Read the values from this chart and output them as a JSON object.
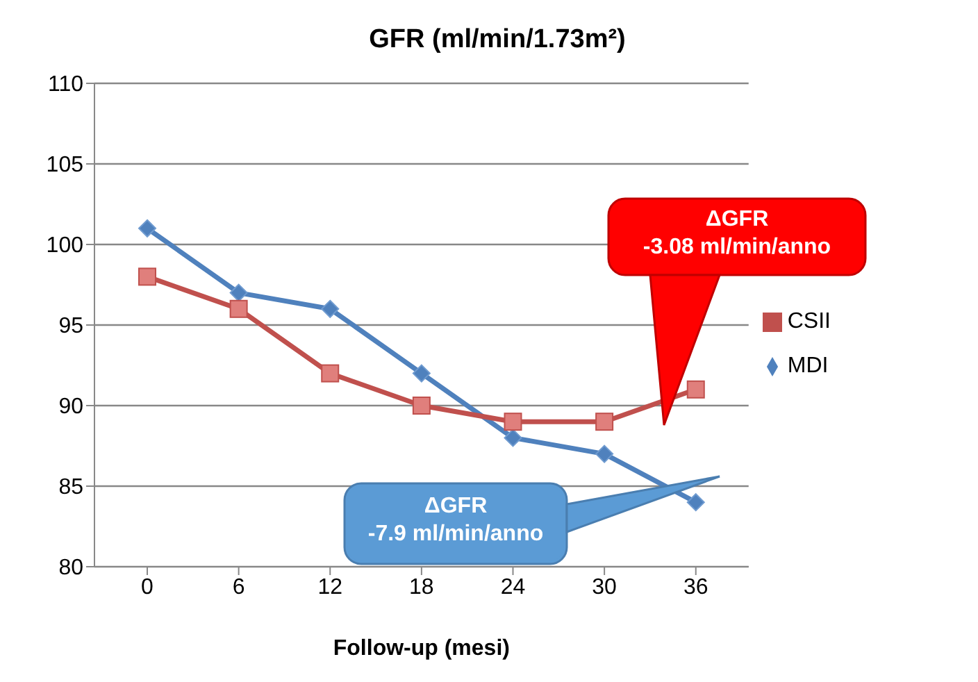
{
  "chart_data": {
    "type": "line",
    "title": "GFR (ml/min/1.73m²)",
    "xlabel": "Follow-up (mesi)",
    "categories": [
      "0",
      "6",
      "12",
      "18",
      "24",
      "30",
      "36"
    ],
    "series": [
      {
        "name": "MDI",
        "color": "#4f81bd",
        "marker": "diamond",
        "values": [
          101,
          97,
          96,
          92,
          88,
          87,
          84
        ]
      },
      {
        "name": "CSII",
        "color": "#c0504d",
        "marker": "square",
        "values": [
          98,
          96,
          92,
          90,
          89,
          89,
          91
        ]
      }
    ],
    "ylim": [
      80,
      110
    ],
    "yticks": [
      80,
      85,
      90,
      95,
      100,
      105,
      110
    ],
    "grid": "y",
    "legend": "right",
    "annotations": [
      "ΔGFR\n-3.08 ml/min/anno",
      "ΔGFR\n-7.9 ml/min/anno"
    ]
  }
}
